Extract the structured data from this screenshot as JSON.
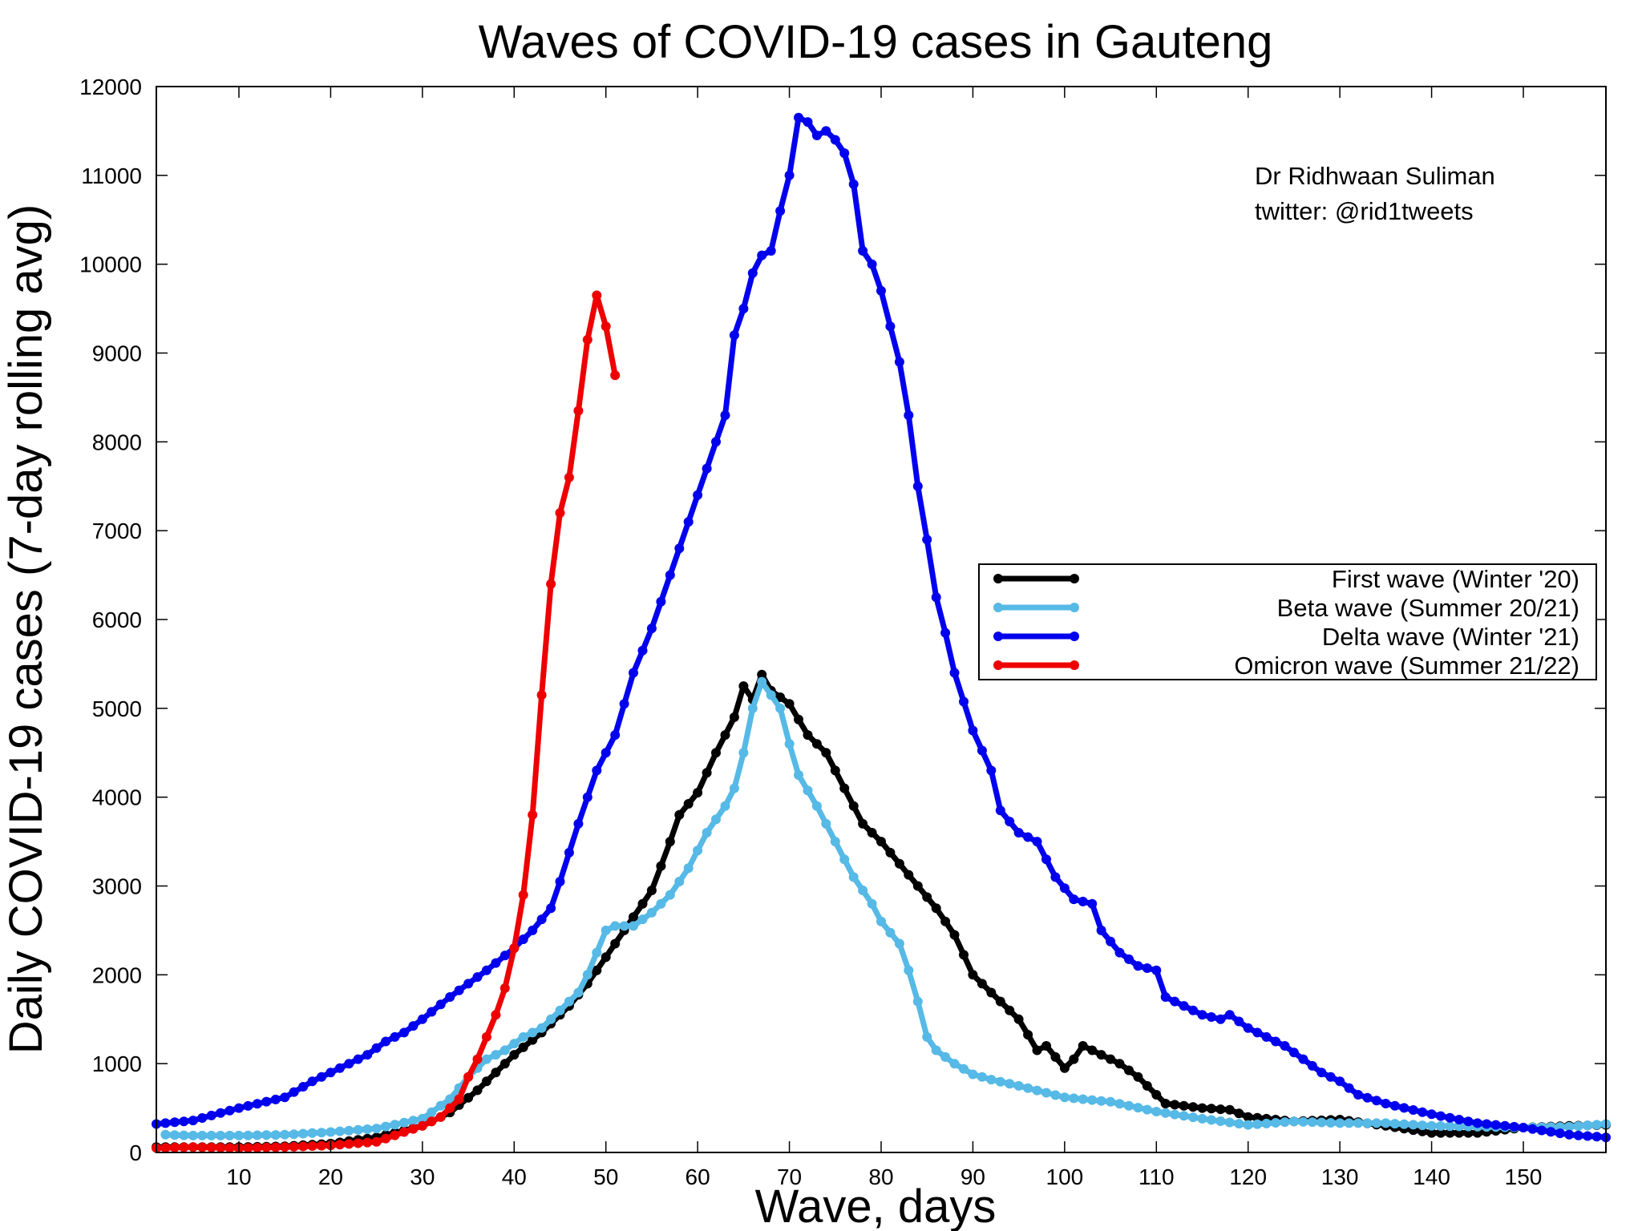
{
  "chart_data": {
    "type": "line",
    "title": "Waves of COVID-19 cases in Gauteng",
    "xlabel": "Wave, days",
    "ylabel": "Daily COVID-19 cases (7-day rolling avg)",
    "xlim": [
      1,
      159
    ],
    "ylim": [
      0,
      12000
    ],
    "xticks": [
      10,
      20,
      30,
      40,
      50,
      60,
      70,
      80,
      90,
      100,
      110,
      120,
      130,
      140,
      150
    ],
    "yticks": [
      0,
      1000,
      2000,
      3000,
      4000,
      5000,
      6000,
      7000,
      8000,
      9000,
      10000,
      11000,
      12000
    ],
    "grid": false,
    "legend_position": "right",
    "annotations": [
      "Dr Ridhwaan Suliman",
      "twitter: @rid1tweets"
    ],
    "series": [
      {
        "name": "First wave (Winter '20)",
        "color": "#000000",
        "points": [
          [
            1,
            60
          ],
          [
            5,
            60
          ],
          [
            10,
            60
          ],
          [
            15,
            70
          ],
          [
            20,
            100
          ],
          [
            25,
            170
          ],
          [
            30,
            300
          ],
          [
            33,
            450
          ],
          [
            36,
            700
          ],
          [
            38,
            900
          ],
          [
            40,
            1100
          ],
          [
            43,
            1350
          ],
          [
            46,
            1650
          ],
          [
            48,
            1900
          ],
          [
            50,
            2200
          ],
          [
            53,
            2650
          ],
          [
            55,
            2950
          ],
          [
            57,
            3500
          ],
          [
            58,
            3800
          ],
          [
            60,
            4050
          ],
          [
            62,
            4500
          ],
          [
            64,
            4900
          ],
          [
            65,
            5250
          ],
          [
            66,
            5100
          ],
          [
            67,
            5380
          ],
          [
            68,
            5200
          ],
          [
            70,
            5050
          ],
          [
            72,
            4700
          ],
          [
            74,
            4500
          ],
          [
            76,
            4100
          ],
          [
            78,
            3700
          ],
          [
            80,
            3500
          ],
          [
            82,
            3250
          ],
          [
            84,
            3000
          ],
          [
            86,
            2750
          ],
          [
            88,
            2450
          ],
          [
            90,
            2000
          ],
          [
            93,
            1700
          ],
          [
            95,
            1500
          ],
          [
            97,
            1150
          ],
          [
            98,
            1200
          ],
          [
            100,
            950
          ],
          [
            101,
            1050
          ],
          [
            102,
            1200
          ],
          [
            104,
            1100
          ],
          [
            106,
            1000
          ],
          [
            108,
            850
          ],
          [
            110,
            650
          ],
          [
            111,
            550
          ],
          [
            115,
            500
          ],
          [
            118,
            480
          ],
          [
            120,
            400
          ],
          [
            125,
            350
          ],
          [
            130,
            370
          ],
          [
            135,
            300
          ],
          [
            140,
            220
          ],
          [
            145,
            220
          ],
          [
            150,
            280
          ],
          [
            155,
            300
          ],
          [
            159,
            310
          ]
        ]
      },
      {
        "name": "Beta wave (Summer 20/21)",
        "color": "#56b9e6",
        "points": [
          [
            2,
            200
          ],
          [
            5,
            190
          ],
          [
            10,
            190
          ],
          [
            15,
            200
          ],
          [
            20,
            230
          ],
          [
            25,
            270
          ],
          [
            30,
            380
          ],
          [
            33,
            600
          ],
          [
            35,
            850
          ],
          [
            37,
            1050
          ],
          [
            39,
            1150
          ],
          [
            41,
            1300
          ],
          [
            43,
            1400
          ],
          [
            45,
            1600
          ],
          [
            47,
            1800
          ],
          [
            48,
            2000
          ],
          [
            49,
            2250
          ],
          [
            50,
            2500
          ],
          [
            51,
            2550
          ],
          [
            53,
            2550
          ],
          [
            55,
            2700
          ],
          [
            57,
            2900
          ],
          [
            59,
            3200
          ],
          [
            61,
            3600
          ],
          [
            63,
            3900
          ],
          [
            64,
            4100
          ],
          [
            65,
            4500
          ],
          [
            66,
            5000
          ],
          [
            67,
            5300
          ],
          [
            68,
            5150
          ],
          [
            69,
            5000
          ],
          [
            70,
            4600
          ],
          [
            71,
            4250
          ],
          [
            73,
            3900
          ],
          [
            75,
            3500
          ],
          [
            77,
            3100
          ],
          [
            79,
            2800
          ],
          [
            80,
            2600
          ],
          [
            82,
            2350
          ],
          [
            83,
            2050
          ],
          [
            84,
            1700
          ],
          [
            85,
            1300
          ],
          [
            86,
            1150
          ],
          [
            88,
            1000
          ],
          [
            90,
            880
          ],
          [
            92,
            820
          ],
          [
            95,
            750
          ],
          [
            100,
            620
          ],
          [
            105,
            570
          ],
          [
            110,
            460
          ],
          [
            115,
            380
          ],
          [
            120,
            310
          ],
          [
            125,
            350
          ],
          [
            130,
            330
          ],
          [
            135,
            330
          ],
          [
            140,
            300
          ],
          [
            145,
            290
          ],
          [
            150,
            280
          ],
          [
            155,
            290
          ],
          [
            159,
            320
          ]
        ]
      },
      {
        "name": "Delta wave (Winter '21)",
        "color": "#0000ee",
        "points": [
          [
            1,
            320
          ],
          [
            5,
            360
          ],
          [
            10,
            500
          ],
          [
            15,
            620
          ],
          [
            18,
            800
          ],
          [
            21,
            950
          ],
          [
            24,
            1100
          ],
          [
            26,
            1250
          ],
          [
            28,
            1350
          ],
          [
            30,
            1500
          ],
          [
            33,
            1750
          ],
          [
            35,
            1900
          ],
          [
            37,
            2050
          ],
          [
            40,
            2300
          ],
          [
            42,
            2500
          ],
          [
            44,
            2750
          ],
          [
            45,
            3050
          ],
          [
            47,
            3700
          ],
          [
            49,
            4300
          ],
          [
            51,
            4700
          ],
          [
            53,
            5400
          ],
          [
            55,
            5900
          ],
          [
            57,
            6500
          ],
          [
            59,
            7100
          ],
          [
            61,
            7700
          ],
          [
            63,
            8300
          ],
          [
            64,
            9200
          ],
          [
            65,
            9500
          ],
          [
            66,
            9900
          ],
          [
            67,
            10100
          ],
          [
            68,
            10150
          ],
          [
            69,
            10600
          ],
          [
            70,
            11000
          ],
          [
            71,
            11650
          ],
          [
            72,
            11600
          ],
          [
            73,
            11450
          ],
          [
            74,
            11500
          ],
          [
            75,
            11400
          ],
          [
            76,
            11250
          ],
          [
            77,
            10900
          ],
          [
            78,
            10150
          ],
          [
            79,
            10000
          ],
          [
            80,
            9700
          ],
          [
            81,
            9300
          ],
          [
            82,
            8900
          ],
          [
            83,
            8300
          ],
          [
            84,
            7500
          ],
          [
            85,
            6900
          ],
          [
            86,
            6250
          ],
          [
            87,
            5850
          ],
          [
            88,
            5400
          ],
          [
            90,
            4750
          ],
          [
            92,
            4300
          ],
          [
            93,
            3850
          ],
          [
            95,
            3600
          ],
          [
            97,
            3500
          ],
          [
            99,
            3100
          ],
          [
            101,
            2850
          ],
          [
            103,
            2800
          ],
          [
            104,
            2500
          ],
          [
            106,
            2250
          ],
          [
            108,
            2100
          ],
          [
            110,
            2050
          ],
          [
            111,
            1750
          ],
          [
            113,
            1650
          ],
          [
            115,
            1550
          ],
          [
            117,
            1500
          ],
          [
            118,
            1550
          ],
          [
            120,
            1400
          ],
          [
            122,
            1300
          ],
          [
            124,
            1200
          ],
          [
            126,
            1050
          ],
          [
            128,
            900
          ],
          [
            130,
            800
          ],
          [
            132,
            650
          ],
          [
            135,
            550
          ],
          [
            140,
            430
          ],
          [
            145,
            330
          ],
          [
            150,
            280
          ],
          [
            155,
            200
          ],
          [
            159,
            170
          ]
        ]
      },
      {
        "name": "Omicron wave (Summer 21/22)",
        "color": "#ee0000",
        "points": [
          [
            1,
            50
          ],
          [
            5,
            60
          ],
          [
            10,
            50
          ],
          [
            15,
            60
          ],
          [
            20,
            80
          ],
          [
            25,
            120
          ],
          [
            28,
            230
          ],
          [
            30,
            300
          ],
          [
            32,
            400
          ],
          [
            34,
            600
          ],
          [
            35,
            850
          ],
          [
            36,
            1050
          ],
          [
            37,
            1300
          ],
          [
            38,
            1550
          ],
          [
            39,
            1850
          ],
          [
            40,
            2300
          ],
          [
            41,
            2900
          ],
          [
            42,
            3800
          ],
          [
            43,
            5150
          ],
          [
            44,
            6400
          ],
          [
            45,
            7200
          ],
          [
            46,
            7600
          ],
          [
            47,
            8350
          ],
          [
            48,
            9150
          ],
          [
            49,
            9650
          ],
          [
            50,
            9300
          ],
          [
            51,
            8750
          ]
        ]
      }
    ]
  }
}
